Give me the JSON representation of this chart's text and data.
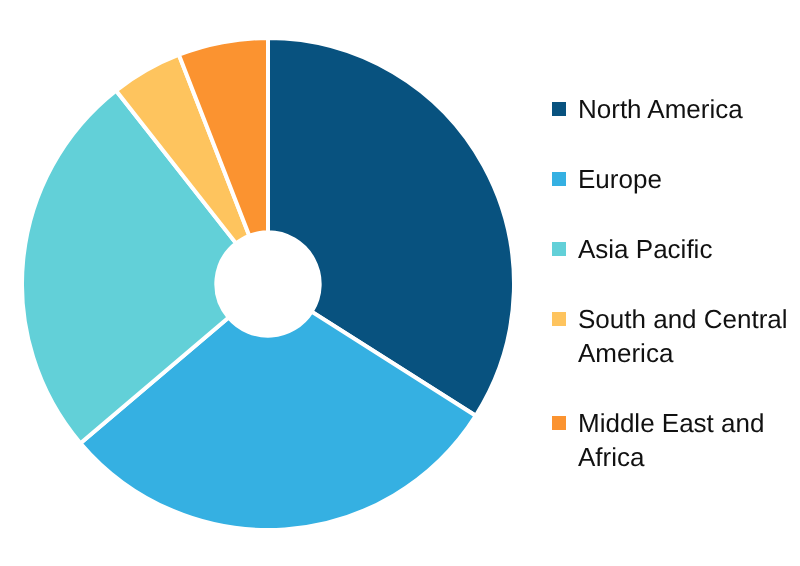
{
  "chart_data": {
    "type": "donut",
    "categories": [
      "North America",
      "Europe",
      "Asia Pacific",
      "South and Central America",
      "Middle East and Africa"
    ],
    "values": [
      34,
      29.8,
      25.6,
      4.7,
      5.9
    ],
    "colors": [
      "#08527f",
      "#35b0e2",
      "#62d0d8",
      "#fec45e",
      "#fb9330"
    ],
    "legend": "right"
  }
}
